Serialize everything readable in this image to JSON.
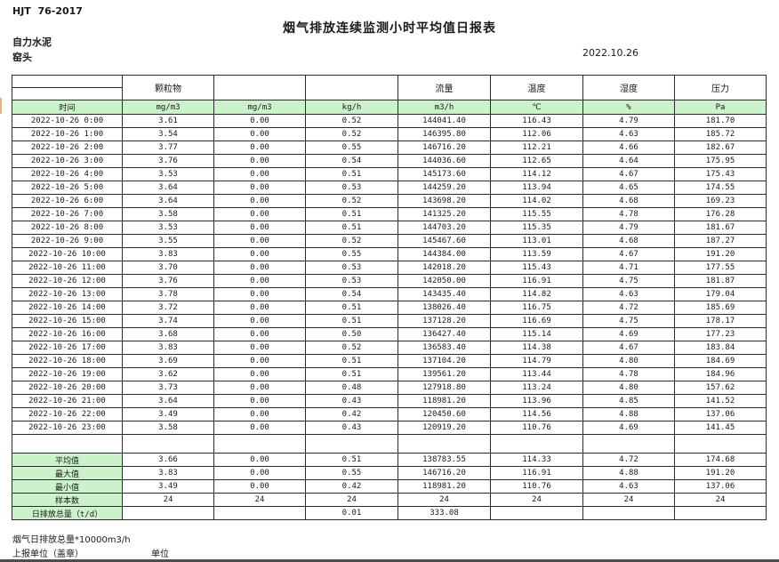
{
  "meta": {
    "standard": "HJT  76-2017",
    "title": "烟气排放连续监测小时平均值日报表",
    "company": "自力水泥",
    "station": "窑头",
    "date": "2022.10.26"
  },
  "table": {
    "time_header": "时间",
    "groups": [
      "",
      "颗粒物",
      "",
      "",
      "流量",
      "温度",
      "湿度",
      "压力"
    ],
    "units": [
      "mg/m3",
      "mg/m3",
      "kg/h",
      "m3/h",
      "℃",
      "%",
      "Pa"
    ],
    "rows": [
      {
        "time": "2022-10-26  0:00",
        "values": [
          "3.61",
          "0.00",
          "0.52",
          "144041.40",
          "116.43",
          "4.79",
          "181.70"
        ]
      },
      {
        "time": "2022-10-26  1:00",
        "values": [
          "3.54",
          "0.00",
          "0.52",
          "146395.80",
          "112.06",
          "4.63",
          "185.72"
        ]
      },
      {
        "time": "2022-10-26  2:00",
        "values": [
          "3.77",
          "0.00",
          "0.55",
          "146716.20",
          "112.21",
          "4.66",
          "182.67"
        ]
      },
      {
        "time": "2022-10-26  3:00",
        "values": [
          "3.76",
          "0.00",
          "0.54",
          "144036.60",
          "112.65",
          "4.64",
          "175.95"
        ]
      },
      {
        "time": "2022-10-26  4:00",
        "values": [
          "3.53",
          "0.00",
          "0.51",
          "145173.60",
          "114.12",
          "4.67",
          "175.43"
        ]
      },
      {
        "time": "2022-10-26  5:00",
        "values": [
          "3.64",
          "0.00",
          "0.53",
          "144259.20",
          "113.94",
          "4.65",
          "174.55"
        ]
      },
      {
        "time": "2022-10-26  6:00",
        "values": [
          "3.64",
          "0.00",
          "0.52",
          "143698.20",
          "114.02",
          "4.68",
          "169.23"
        ]
      },
      {
        "time": "2022-10-26  7:00",
        "values": [
          "3.58",
          "0.00",
          "0.51",
          "141325.20",
          "115.55",
          "4.78",
          "176.28"
        ]
      },
      {
        "time": "2022-10-26  8:00",
        "values": [
          "3.53",
          "0.00",
          "0.51",
          "144703.20",
          "115.35",
          "4.79",
          "181.67"
        ]
      },
      {
        "time": "2022-10-26  9:00",
        "values": [
          "3.55",
          "0.00",
          "0.52",
          "145467.60",
          "113.01",
          "4.68",
          "187.27"
        ]
      },
      {
        "time": "2022-10-26 10:00",
        "values": [
          "3.83",
          "0.00",
          "0.55",
          "144384.00",
          "113.59",
          "4.67",
          "191.20"
        ]
      },
      {
        "time": "2022-10-26 11:00",
        "values": [
          "3.70",
          "0.00",
          "0.53",
          "142018.20",
          "115.43",
          "4.71",
          "177.55"
        ]
      },
      {
        "time": "2022-10-26 12:00",
        "values": [
          "3.76",
          "0.00",
          "0.53",
          "142050.00",
          "116.91",
          "4.75",
          "181.87"
        ]
      },
      {
        "time": "2022-10-26 13:00",
        "values": [
          "3.78",
          "0.00",
          "0.54",
          "143435.40",
          "114.82",
          "4.63",
          "179.04"
        ]
      },
      {
        "time": "2022-10-26 14:00",
        "values": [
          "3.72",
          "0.00",
          "0.51",
          "138026.40",
          "116.75",
          "4.72",
          "185.69"
        ]
      },
      {
        "time": "2022-10-26 15:00",
        "values": [
          "3.74",
          "0.00",
          "0.51",
          "137128.20",
          "116.69",
          "4.75",
          "178.17"
        ]
      },
      {
        "time": "2022-10-26 16:00",
        "values": [
          "3.68",
          "0.00",
          "0.50",
          "136427.40",
          "115.14",
          "4.69",
          "177.23"
        ]
      },
      {
        "time": "2022-10-26 17:00",
        "values": [
          "3.83",
          "0.00",
          "0.52",
          "136583.40",
          "114.38",
          "4.67",
          "183.84"
        ]
      },
      {
        "time": "2022-10-26 18:00",
        "values": [
          "3.69",
          "0.00",
          "0.51",
          "137104.20",
          "114.79",
          "4.80",
          "184.69"
        ]
      },
      {
        "time": "2022-10-26 19:00",
        "values": [
          "3.62",
          "0.00",
          "0.51",
          "139561.20",
          "113.44",
          "4.78",
          "184.96"
        ]
      },
      {
        "time": "2022-10-26 20:00",
        "values": [
          "3.73",
          "0.00",
          "0.48",
          "127918.80",
          "113.24",
          "4.80",
          "157.62"
        ]
      },
      {
        "time": "2022-10-26 21:00",
        "values": [
          "3.64",
          "0.00",
          "0.43",
          "118981.20",
          "113.96",
          "4.85",
          "141.52"
        ]
      },
      {
        "time": "2022-10-26 22:00",
        "values": [
          "3.49",
          "0.00",
          "0.42",
          "120450.60",
          "114.56",
          "4.88",
          "137.06"
        ]
      },
      {
        "time": "2022-10-26 23:00",
        "values": [
          "3.58",
          "0.00",
          "0.43",
          "120919.20",
          "110.76",
          "4.69",
          "141.45"
        ]
      }
    ],
    "summary": [
      {
        "label": "平均值",
        "align": "center",
        "values": [
          "3.66",
          "0.00",
          "0.51",
          "138783.55",
          "114.33",
          "4.72",
          "174.68"
        ]
      },
      {
        "label": "最大值",
        "align": "center",
        "values": [
          "3.83",
          "0.00",
          "0.55",
          "146716.20",
          "116.91",
          "4.88",
          "191.20"
        ]
      },
      {
        "label": "最小值",
        "align": "center",
        "values": [
          "3.49",
          "0.00",
          "0.42",
          "118981.20",
          "110.76",
          "4.63",
          "137.06"
        ]
      },
      {
        "label": "样本数",
        "align": "center",
        "values": [
          "24",
          "24",
          "24",
          "24",
          "24",
          "24",
          "24"
        ]
      },
      {
        "label": "日排放总量（t/d）",
        "align": "left",
        "values": [
          "",
          "",
          "0.01",
          "333.08",
          "",
          "",
          ""
        ]
      }
    ]
  },
  "footer": {
    "flow_note": "烟气日排放总量*10000m3/h",
    "report_unit": "上报单位（盖章）",
    "unit_label": "单位"
  },
  "colors": {
    "header_green": "#ccf2cc",
    "border": "#2b2b2b"
  }
}
